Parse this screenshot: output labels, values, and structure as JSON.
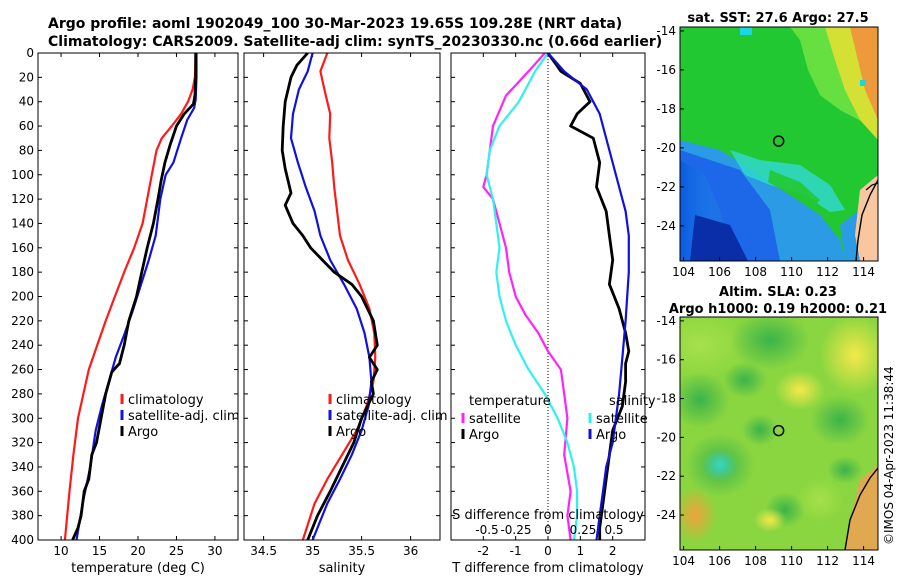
{
  "title": {
    "line1": "Argo profile: aoml 1902049_100 30-Mar-2023 19.65S 109.28E (NRT data)",
    "line2": "Climatology: CARS2009. Satellite-adj clim: synTS_20230330.nc (0.66d earlier)"
  },
  "colors": {
    "climatology": "#ff1a1a",
    "satellite": "#1010e0",
    "argo": "#000000",
    "t_diff": "#ff22ff",
    "s_diff": "#33f0f0"
  },
  "chart_data": [
    {
      "type": "line",
      "id": "temperature",
      "xlabel": "temperature (deg C)",
      "ylabel": "",
      "xlim": [
        7,
        33
      ],
      "ylim": [
        400,
        0
      ],
      "xticks": [
        10,
        15,
        20,
        25,
        30
      ],
      "yticks": [
        0,
        20,
        40,
        60,
        80,
        100,
        120,
        140,
        160,
        180,
        200,
        220,
        240,
        260,
        280,
        300,
        320,
        340,
        360,
        380,
        400
      ],
      "legend": [
        "climatology",
        "satellite-adj. clim",
        "Argo"
      ],
      "series": [
        {
          "name": "climatology",
          "color_key": "climatology",
          "x": [
            27.5,
            27.4,
            27.1,
            26.5,
            25.6,
            24.4,
            23.1,
            22.4,
            21.8,
            20.6,
            19.5,
            18.2,
            17.0,
            15.8,
            14.7,
            13.6,
            12.9,
            12.2,
            11.6,
            11.1,
            10.5
          ],
          "y": [
            0,
            20,
            30,
            40,
            50,
            60,
            70,
            80,
            100,
            140,
            160,
            180,
            200,
            220,
            240,
            260,
            280,
            300,
            330,
            360,
            400
          ]
        },
        {
          "name": "satellite-adj. clim",
          "color_key": "satellite",
          "x": [
            27.6,
            27.6,
            27.5,
            27.3,
            26.4,
            25.6,
            24.6,
            23.6,
            22.9,
            22.3,
            21.4,
            20.4,
            19.4,
            18.3,
            17.1,
            16.2,
            15.3,
            14.5,
            13.8,
            12.8,
            12.0
          ],
          "y": [
            0,
            20,
            38,
            45,
            55,
            70,
            90,
            100,
            120,
            150,
            170,
            190,
            210,
            230,
            250,
            270,
            290,
            310,
            340,
            370,
            400
          ]
        },
        {
          "name": "Argo",
          "color_key": "argo",
          "x": [
            27.5,
            27.5,
            27.4,
            27.2,
            26.0,
            25.0,
            24.2,
            23.5,
            23.0,
            22.6,
            22.0,
            21.2,
            20.5,
            19.8,
            18.8,
            18.2,
            17.6,
            16.6,
            15.8,
            15.2,
            14.6,
            14.0,
            13.6,
            13.0,
            12.6,
            12.2,
            11.5
          ],
          "y": [
            0,
            20,
            35,
            42,
            50,
            60,
            75,
            90,
            105,
            120,
            140,
            160,
            180,
            200,
            220,
            240,
            255,
            262,
            280,
            300,
            320,
            330,
            350,
            360,
            380,
            390,
            400
          ]
        }
      ]
    },
    {
      "type": "line",
      "id": "salinity",
      "xlabel": "salinity",
      "ylabel": "",
      "xlim": [
        34.3,
        36.3
      ],
      "ylim": [
        400,
        0
      ],
      "xticks": [
        34.5,
        35,
        35.5,
        36
      ],
      "xtick_labels": [
        "34.5",
        "35",
        "35.5",
        "36"
      ],
      "legend": [
        "climatology",
        "satellite-adj. clim",
        "Argo"
      ],
      "series": [
        {
          "name": "climatology",
          "color_key": "climatology",
          "x": [
            35.15,
            35.08,
            35.12,
            35.18,
            35.17,
            35.2,
            35.22,
            35.25,
            35.28,
            35.36,
            35.48,
            35.58,
            35.63,
            35.64,
            35.62,
            35.55,
            35.45,
            35.3,
            35.15,
            35.02,
            34.9
          ],
          "y": [
            0,
            15,
            30,
            50,
            70,
            90,
            110,
            130,
            150,
            170,
            190,
            210,
            230,
            250,
            270,
            290,
            310,
            330,
            350,
            370,
            400
          ]
        },
        {
          "name": "satellite-adj. clim",
          "color_key": "satellite",
          "x": [
            35.0,
            34.95,
            34.86,
            34.8,
            34.78,
            34.85,
            34.93,
            35.02,
            35.08,
            35.18,
            35.32,
            35.45,
            35.53,
            35.58,
            35.6,
            35.57,
            35.5,
            35.4,
            35.28,
            35.15,
            35.0
          ],
          "y": [
            0,
            15,
            30,
            50,
            70,
            90,
            110,
            130,
            150,
            170,
            190,
            210,
            230,
            250,
            270,
            290,
            310,
            330,
            350,
            370,
            400
          ]
        },
        {
          "name": "Argo",
          "color_key": "argo",
          "x": [
            34.95,
            34.84,
            34.78,
            34.72,
            34.7,
            34.69,
            34.72,
            34.75,
            34.78,
            34.72,
            34.8,
            34.9,
            34.98,
            35.1,
            35.22,
            35.4,
            35.5,
            35.62,
            35.66,
            35.58,
            35.66,
            35.6,
            35.62,
            35.56,
            35.5,
            35.42,
            35.3,
            35.18,
            35.05,
            34.95
          ],
          "y": [
            0,
            10,
            20,
            40,
            60,
            80,
            95,
            105,
            115,
            125,
            140,
            150,
            160,
            170,
            180,
            190,
            200,
            220,
            240,
            250,
            260,
            270,
            280,
            290,
            300,
            320,
            340,
            360,
            380,
            400
          ]
        }
      ]
    },
    {
      "type": "line",
      "id": "difference",
      "xlabel": "T difference from climatology",
      "xlabel_top": "S difference from climatology",
      "xlim": [
        -3,
        3
      ],
      "ylim": [
        400,
        0
      ],
      "xticks": [
        -2,
        -1,
        0,
        1,
        2
      ],
      "top_ticks": [
        "-0.5",
        "-0.25",
        "0",
        "0.25",
        "0.5"
      ],
      "legend_left_title": "temperature",
      "legend_right_title": "salinity",
      "legend_satellite": "satellite",
      "legend_argo": "Argo",
      "series": [
        {
          "name": "T diff satellite",
          "color_key": "t_diff",
          "x": [
            -0.1,
            -0.6,
            -1.3,
            -1.7,
            -1.8,
            -1.9,
            -2.0,
            -1.7,
            -1.5,
            -1.3,
            -1.2,
            -1.0,
            -0.7,
            -0.3,
            0.0,
            0.4,
            0.5,
            0.6,
            0.5,
            0.7,
            0.6,
            0.7
          ],
          "y": [
            0,
            15,
            35,
            60,
            80,
            100,
            110,
            120,
            140,
            160,
            180,
            200,
            215,
            230,
            245,
            260,
            280,
            300,
            330,
            360,
            380,
            400
          ]
        },
        {
          "name": "S diff satellite",
          "color_key": "s_diff",
          "x": [
            0.0,
            -0.4,
            -0.9,
            -1.5,
            -1.8,
            -1.9,
            -1.7,
            -1.6,
            -1.5,
            -1.6,
            -1.5,
            -1.3,
            -1.0,
            -0.6,
            -0.1,
            0.3,
            0.6,
            0.8,
            0.9,
            0.9,
            0.8
          ],
          "y": [
            0,
            15,
            40,
            60,
            80,
            100,
            120,
            140,
            160,
            180,
            200,
            220,
            240,
            260,
            280,
            300,
            320,
            340,
            360,
            380,
            400
          ]
        },
        {
          "name": "T diff Argo",
          "color_key": "argo",
          "x": [
            0.0,
            0.4,
            1.0,
            1.3,
            0.9,
            0.7,
            1.4,
            1.6,
            1.5,
            1.8,
            1.9,
            2.0,
            1.9,
            2.2,
            2.4,
            2.5,
            2.4,
            2.4,
            2.3,
            2.0,
            1.9,
            1.8,
            1.7,
            1.6,
            1.6
          ],
          "y": [
            0,
            15,
            25,
            40,
            50,
            60,
            70,
            90,
            110,
            130,
            150,
            170,
            190,
            210,
            230,
            245,
            255,
            270,
            290,
            310,
            330,
            350,
            370,
            390,
            400
          ]
        },
        {
          "name": "S diff Argo",
          "color_key": "satellite",
          "x": [
            0.0,
            0.5,
            1.2,
            1.6,
            1.9,
            2.2,
            2.4,
            2.5,
            2.5,
            2.4,
            2.3,
            2.2,
            2.1,
            2.0,
            1.8,
            1.7,
            1.6,
            1.5
          ],
          "y": [
            0,
            15,
            30,
            50,
            80,
            110,
            130,
            150,
            180,
            220,
            250,
            280,
            300,
            320,
            340,
            360,
            380,
            400
          ]
        }
      ]
    },
    {
      "type": "heatmap",
      "id": "sst_map",
      "title": "sat. SST: 27.6 Argo: 27.5",
      "xlim": [
        103.8,
        114.8
      ],
      "ylim": [
        -25.8,
        -13.8
      ],
      "xticks": [
        "104",
        "106",
        "108",
        "110",
        "112",
        "114"
      ],
      "yticks": [
        "-14",
        "-16",
        "-18",
        "-20",
        "-22",
        "-24"
      ],
      "marker": {
        "lon": 109.28,
        "lat": -19.65
      }
    },
    {
      "type": "heatmap",
      "id": "sla_map",
      "title_line1": "Altim. SLA: 0.23",
      "title_line2": "Argo h1000: 0.19 h2000: 0.21",
      "xlim": [
        103.8,
        114.8
      ],
      "ylim": [
        -25.8,
        -13.8
      ],
      "xticks": [
        "104",
        "106",
        "108",
        "110",
        "112",
        "114"
      ],
      "yticks": [
        "-14",
        "-16",
        "-18",
        "-20",
        "-22",
        "-24"
      ],
      "marker": {
        "lon": 109.28,
        "lat": -19.65
      }
    }
  ],
  "credit": "©IMOS 04-Apr-2023 11:38:44"
}
